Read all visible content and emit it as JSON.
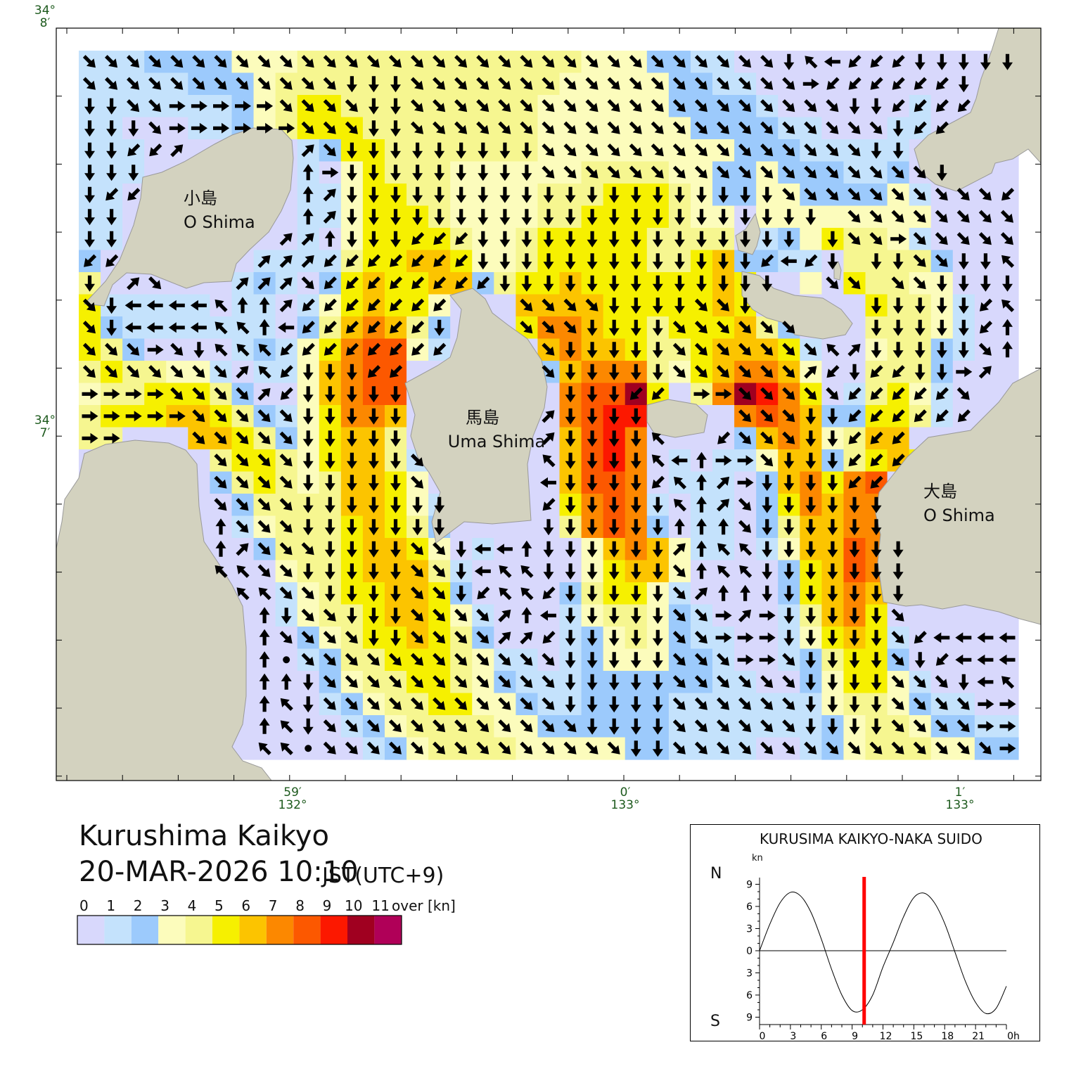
{
  "map": {
    "title": "Kurushima Kaikyo",
    "datetime": "20-MAR-2026 10:10",
    "timezone": "JST(UTC+9)",
    "land_color": "#d3d2bf",
    "lat_labels": [
      {
        "deg": "34°",
        "min": "8′"
      },
      {
        "deg": "34°",
        "min": "7′"
      }
    ],
    "lon_labels": [
      {
        "min": "59′",
        "deg": "132°"
      },
      {
        "min": "0′",
        "deg": "133°"
      },
      {
        "min": "1′",
        "deg": "133°"
      }
    ],
    "place_labels": [
      {
        "ja": "小島",
        "en": "O Shima"
      },
      {
        "ja": "馬島",
        "en": "Uma Shima"
      },
      {
        "ja": "大島",
        "en": "O Shima"
      }
    ]
  },
  "legend": {
    "labels": [
      "0",
      "1",
      "2",
      "3",
      "4",
      "5",
      "6",
      "7",
      "8",
      "9",
      "10",
      "11"
    ],
    "unit": "over [kn]",
    "colors": [
      "#d8d8fc",
      "#c4e2fc",
      "#9ccafc",
      "#fcfcbc",
      "#f6f690",
      "#f6f000",
      "#fcc400",
      "#fc8800",
      "#fc5800",
      "#fc1800",
      "#a00020",
      "#b00058"
    ]
  },
  "current_grid": {
    "speed_rows": [
      "1112222333444444444444433322110000000000000",
      "1111122234444444444444333332211000000000000",
      "1111111234554444444443333332222100000010000",
      "1100011234555444444443333333222211000110000",
      "1110000000125544444443333333332221111100000",
      "1110000000103544433333344443322322211200000",
      "1100000000113554433334445554322332222310000",
      "1100000000113555433334455554330333333330000",
      "1100000000103555543345555544440123544310000",
      "2000000011114556653345555544562211044442000",
      "4000000121025655662455655555565003054433000",
      "5111110110135655300066665555565000005443100",
      "5211111110246764200057765545556420004443100",
      "5420000121357883100006766544566651003442100",
      "4544331011367880000002677743567763004442000",
      "3445554200367880000000788a5047a975014531000",
      "4555665421357760000000789900007876225541000",
      "4400066542356640000000689700002676346600000",
      "0000004554356641000000689701011366245650000",
      "0000002454346653000000688701110267578000000",
      "0000000244446653100000578710110257677000000",
      "0000000134445654200000478720110246677000000",
      "0000000024445665301000036763110136687000000",
      "0000000003445666410000035663000025687000000",
      "0000000001345566520000245531000025676000000",
      "0000000001344566531000134432100014675000000",
      "0000000000234556542000123432110013565100000",
      "0000000000124455543110123332210012455200000",
      "0000000000023445543211122222211002355310000",
      "0000000000012344553321122221111111344321100",
      "0000000000001234444332222221111111234432211",
      "0000000000000123444433333221111001234443322"
    ],
    "direction_rows": [
      "3333333333333333333333333333333327411122222.",
      "33333333333322233333333333333333361111112..",
      "22336666633332233333333333333333333221111..",
      "2223666666333223333333333333333333333211....",
      "22119.....9322222222233333333333333322.....",
      "222.......862222222223333333333333333332.....",
      "211.......892222222222222222222233333333331.77",
      "22........892222222222222222222222.333333333778",
      "22.......998222111222222222222222.233633333377",
      "11......999111111122222222222221412.22332277",
      "2.93...9993111111112222222222222..33.33222247",
      "32444478891111111...33332222332.....2222217",
      "32444477841111112...3332222333333...2222218",
      "33363277711111111....3222223333333792222238",
      "333333397122211......322222333333912112269",
      "666633339122222.......22211.6633333111113..",
      "666663333322222......92222....33322111111..",
      "66...3333322222......922227..133322111.....",
      "......3333222223.....72222748663222111.....",
      "......3333222223.....4222217896222211......",
      "......33332222222....1222227893222222......",
      "......83332222222....2222228883222222......",
      "......89333222233244822222298772222222......",
      "......77332222233247722222238772222222......",
      ".......7733222233217712222239882222222......",
      "........823322233339842222233696222223.....",
      "........833332233339912222233666222223144444",
      "........853333333333332222233366322223214444",
      "........882333333333332222233333322223332477",
      "........872333333333332222233333322223333669",
      "........872333333333333222233333322223333666",
      "........775333333333333332233333333333333366"
    ]
  },
  "tide_chart": {
    "title": "KURUSIMA KAIKYO-NAKA SUIDO",
    "unit": "kn",
    "north_label": "N",
    "south_label": "S",
    "y_tick_labels": [
      "9",
      "6",
      "3",
      "0",
      "3",
      "6",
      "9"
    ],
    "x_tick_labels": [
      "0",
      "3",
      "6",
      "9",
      "12",
      "15",
      "18",
      "21",
      "0h"
    ],
    "marker_color": "#ff0000"
  },
  "chart_data": {
    "type": "line",
    "title": "KURUSIMA KAIKYO-NAKA SUIDO",
    "ylabel": "kn",
    "x": [
      0,
      1,
      2,
      3,
      4,
      5,
      6,
      7,
      8,
      9,
      10,
      11,
      12,
      13,
      14,
      15,
      16,
      17,
      18,
      19,
      20,
      21,
      22,
      23,
      24
    ],
    "y": [
      0,
      3.6,
      6.5,
      7.9,
      7.4,
      5.2,
      1.6,
      -2.5,
      -6.0,
      -8.1,
      -8.0,
      -6.0,
      -2.2,
      1.1,
      4.6,
      7.2,
      7.8,
      6.5,
      3.7,
      -0.2,
      -4.1,
      -7.0,
      -8.5,
      -7.8,
      -4.8
    ],
    "xlim": [
      0,
      24
    ],
    "ylim": [
      -10,
      10
    ],
    "y_positive": "N",
    "y_negative": "S",
    "current_time_hours": 10.17,
    "grid": false
  }
}
